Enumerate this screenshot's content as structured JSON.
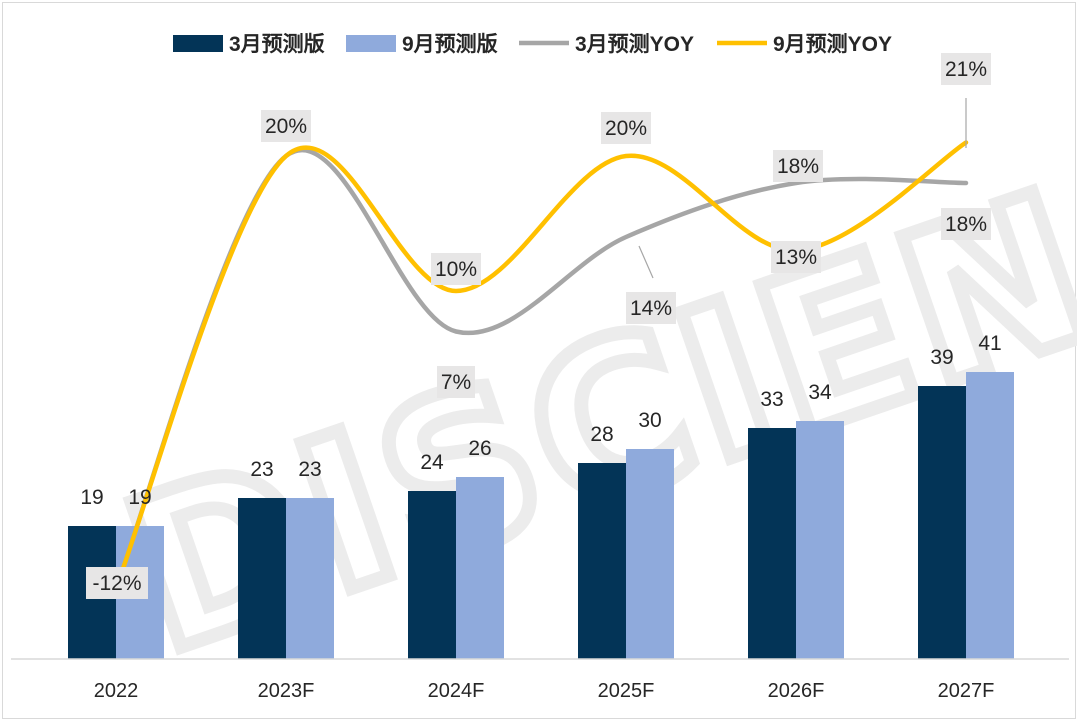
{
  "chart_data": {
    "type": "bar",
    "categories": [
      "2022",
      "2023F",
      "2024F",
      "2025F",
      "2026F",
      "2027F"
    ],
    "series": [
      {
        "name": "3月预测版",
        "kind": "bar",
        "color": "#033457",
        "values": [
          19,
          23,
          24,
          28,
          33,
          39
        ]
      },
      {
        "name": "9月预测版",
        "kind": "bar",
        "color": "#8FAADC",
        "values": [
          19,
          23,
          26,
          30,
          34,
          41
        ]
      },
      {
        "name": "3月预测YOY",
        "kind": "line",
        "color": "#A6A6A6",
        "values": [
          -12,
          20,
          7,
          14,
          18,
          18
        ],
        "labels": [
          "",
          "",
          "7%",
          "",
          "18%",
          "18%"
        ]
      },
      {
        "name": "9月预测YOY",
        "kind": "line",
        "color": "#FFC000",
        "values": [
          -12,
          20,
          10,
          20,
          13,
          21
        ],
        "labels": [
          "-12%",
          "20%",
          "10%",
          "20%",
          "13%",
          "21%"
        ]
      }
    ],
    "bar_labels_march": [
      "19",
      "23",
      "24",
      "28",
      "33",
      "39"
    ],
    "bar_labels_sept": [
      "19",
      "23",
      "26",
      "30",
      "34",
      "41"
    ],
    "extra_labels": [
      "14%"
    ],
    "ylim_bars": [
      0,
      45
    ],
    "ylim_yoy": [
      -15,
      25
    ],
    "legend_position": "top",
    "grid": false,
    "watermark": "DISCIEN"
  }
}
